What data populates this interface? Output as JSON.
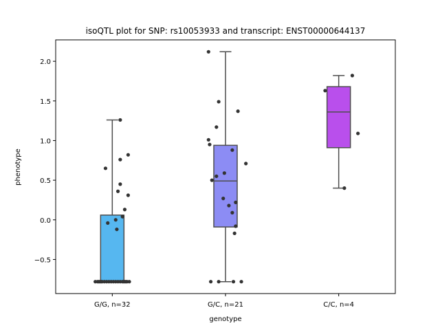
{
  "chart_data": {
    "type": "box",
    "title": "isoQTL plot for SNP: rs10053933 and transcript: ENST00000644137",
    "xlabel": "genotype",
    "ylabel": "phenotype",
    "ylim": [
      -0.93,
      2.27
    ],
    "yticks": [
      -0.5,
      0.0,
      0.5,
      1.0,
      1.5,
      2.0
    ],
    "ytick_labels": [
      "−0.5",
      "0.0",
      "0.5",
      "1.0",
      "1.5",
      "2.0"
    ],
    "grid": false,
    "categories": [
      "G/G, n=32",
      "G/C, n=21",
      "C/C, n=4"
    ],
    "boxes": [
      {
        "category": "G/G, n=32",
        "color": "#56b7f0",
        "whisker_low": -0.78,
        "q1": -0.78,
        "median": -0.78,
        "q3": 0.06,
        "whisker_high": 1.26
      },
      {
        "category": "G/C, n=21",
        "color": "#8c8cf4",
        "whisker_low": -0.78,
        "q1": -0.09,
        "median": 0.49,
        "q3": 0.94,
        "whisker_high": 2.12
      },
      {
        "category": "C/C, n=4",
        "color": "#b94fec",
        "whisker_low": 0.4,
        "q1": 0.91,
        "median": 1.36,
        "q3": 1.68,
        "whisker_high": 1.82
      }
    ],
    "points": [
      [
        {
          "x": -0.15,
          "y": -0.78
        },
        {
          "x": -0.13,
          "y": -0.78
        },
        {
          "x": -0.11,
          "y": -0.78
        },
        {
          "x": -0.09,
          "y": -0.78
        },
        {
          "x": -0.07,
          "y": -0.78
        },
        {
          "x": -0.05,
          "y": -0.78
        },
        {
          "x": -0.03,
          "y": -0.78
        },
        {
          "x": -0.01,
          "y": -0.78
        },
        {
          "x": 0.01,
          "y": -0.78
        },
        {
          "x": 0.03,
          "y": -0.78
        },
        {
          "x": 0.05,
          "y": -0.78
        },
        {
          "x": 0.07,
          "y": -0.78
        },
        {
          "x": 0.09,
          "y": -0.78
        },
        {
          "x": 0.11,
          "y": -0.78
        },
        {
          "x": 0.13,
          "y": -0.78
        },
        {
          "x": 0.15,
          "y": -0.78
        },
        {
          "x": -0.12,
          "y": -0.78
        },
        {
          "x": 0.12,
          "y": -0.78
        },
        {
          "x": 0.07,
          "y": 1.26
        },
        {
          "x": 0.14,
          "y": 0.82
        },
        {
          "x": -0.06,
          "y": 0.65
        },
        {
          "x": 0.07,
          "y": 0.76
        },
        {
          "x": 0.07,
          "y": 0.45
        },
        {
          "x": 0.05,
          "y": 0.36
        },
        {
          "x": 0.14,
          "y": 0.31
        },
        {
          "x": 0.11,
          "y": 0.13
        },
        {
          "x": 0.09,
          "y": 0.04
        },
        {
          "x": -0.04,
          "y": -0.04
        },
        {
          "x": 0.03,
          "y": 0.0
        },
        {
          "x": 0.04,
          "y": -0.12
        },
        {
          "x": -0.1,
          "y": -0.78
        },
        {
          "x": 0.1,
          "y": -0.78
        }
      ],
      [
        {
          "x": -0.15,
          "y": 2.12
        },
        {
          "x": -0.06,
          "y": 1.49
        },
        {
          "x": 0.11,
          "y": 1.37
        },
        {
          "x": -0.08,
          "y": 1.17
        },
        {
          "x": -0.15,
          "y": 1.01
        },
        {
          "x": -0.14,
          "y": 0.95
        },
        {
          "x": 0.06,
          "y": 0.88
        },
        {
          "x": 0.18,
          "y": 0.71
        },
        {
          "x": -0.01,
          "y": 0.59
        },
        {
          "x": -0.08,
          "y": 0.55
        },
        {
          "x": -0.12,
          "y": 0.5
        },
        {
          "x": -0.02,
          "y": 0.27
        },
        {
          "x": 0.09,
          "y": 0.22
        },
        {
          "x": 0.03,
          "y": 0.18
        },
        {
          "x": 0.06,
          "y": 0.09
        },
        {
          "x": 0.09,
          "y": -0.08
        },
        {
          "x": 0.08,
          "y": -0.17
        },
        {
          "x": -0.13,
          "y": -0.78
        },
        {
          "x": -0.06,
          "y": -0.78
        },
        {
          "x": 0.07,
          "y": -0.78
        },
        {
          "x": 0.14,
          "y": -0.78
        }
      ],
      [
        {
          "x": 0.12,
          "y": 1.82
        },
        {
          "x": -0.12,
          "y": 1.63
        },
        {
          "x": 0.17,
          "y": 1.09
        },
        {
          "x": 0.05,
          "y": 0.4
        }
      ]
    ],
    "colors": {
      "box_edge": "#4d4d4d",
      "point": "#333333"
    }
  }
}
